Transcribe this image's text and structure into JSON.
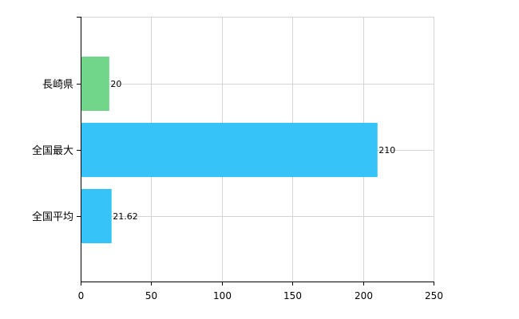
{
  "chart_data": {
    "type": "bar",
    "orientation": "horizontal",
    "categories": [
      "長崎県",
      "全国最大",
      "全国平均"
    ],
    "values": [
      20,
      210,
      21.62
    ],
    "data_labels": [
      "20",
      "210",
      "21.62"
    ],
    "bar_colors": [
      "#72d68a",
      "#36c3f7",
      "#36c3f7"
    ],
    "xlim": [
      0,
      250
    ],
    "xticks": [
      0,
      50,
      100,
      150,
      200,
      250
    ],
    "grid": true,
    "legend": "none"
  }
}
